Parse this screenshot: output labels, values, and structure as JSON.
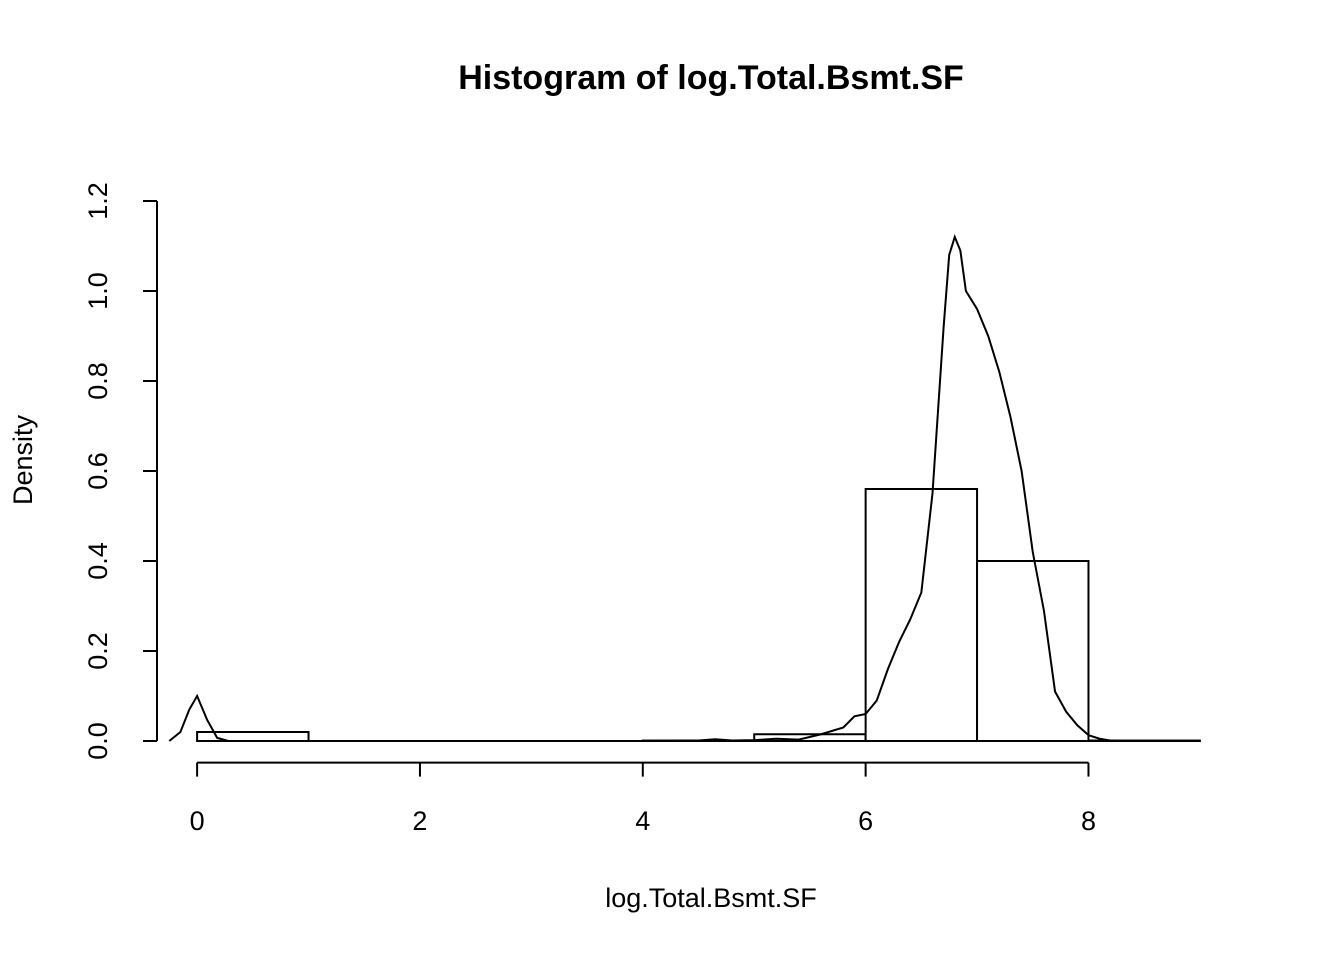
{
  "chart_data": {
    "type": "histogram",
    "title": "Histogram of log.Total.Bsmt.SF",
    "x_label": "log.Total.Bsmt.SF",
    "y_label": "Density",
    "bins": [
      0,
      1,
      2,
      3,
      4,
      5,
      6,
      7,
      8,
      9
    ],
    "values": [
      0.02,
      0,
      0,
      0,
      0.001,
      0.015,
      0.56,
      0.4,
      0.001
    ],
    "density_curve": {
      "x": [
        -0.25,
        -0.15,
        -0.07,
        0,
        0.09,
        0.18,
        0.28,
        1,
        2,
        3,
        4,
        4.5,
        4.65,
        4.8,
        5,
        5.2,
        5.4,
        5.6,
        5.8,
        5.9,
        6,
        6.1,
        6.2,
        6.3,
        6.4,
        6.5,
        6.6,
        6.7,
        6.75,
        6.8,
        6.85,
        6.9,
        7,
        7.1,
        7.2,
        7.3,
        7.4,
        7.5,
        7.6,
        7.7,
        7.8,
        7.9,
        8,
        8.1,
        8.2,
        8.3,
        9
      ],
      "values": [
        0,
        0.02,
        0.07,
        0.1,
        0.047,
        0.007,
        0,
        0,
        0,
        0,
        0,
        0.001,
        0.004,
        0.001,
        0.002,
        0.005,
        0.003,
        0.015,
        0.03,
        0.055,
        0.06,
        0.09,
        0.16,
        0.22,
        0.27,
        0.33,
        0.55,
        0.92,
        1.08,
        1.12,
        1.09,
        1.0,
        0.96,
        0.9,
        0.82,
        0.72,
        0.6,
        0.42,
        0.29,
        0.11,
        0.065,
        0.035,
        0.013,
        0.005,
        0.001,
        0,
        0
      ]
    },
    "xlim": [
      -0.36,
      9.36
    ],
    "ylim": [
      -0.048,
      1.248
    ],
    "xticks": [
      0,
      2,
      4,
      6,
      8
    ],
    "yticks": [
      {
        "value": 0,
        "label": "0.0"
      },
      0.2,
      0.4,
      0.6,
      0.8,
      {
        "value": 1,
        "label": "1.0"
      },
      1.2
    ],
    "color": "#ffffff",
    "line_color": "#000000"
  }
}
